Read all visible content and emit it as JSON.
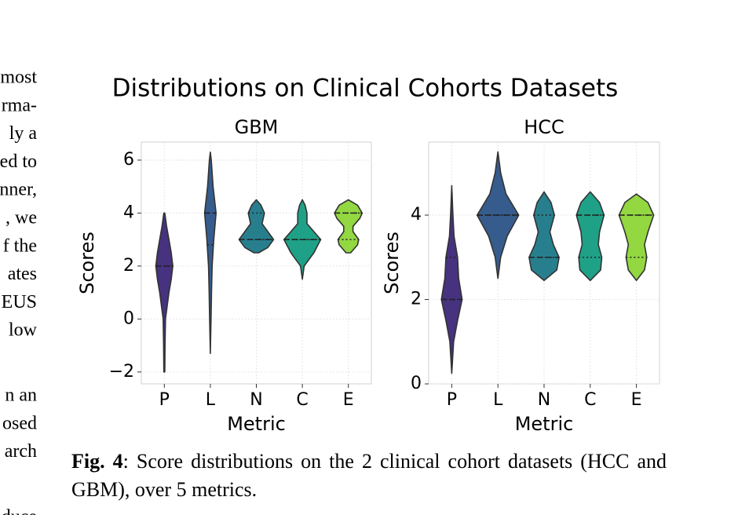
{
  "side_text": [
    [
      "most",
      "rma-",
      "ly a",
      "ed to",
      "nner,",
      ", we",
      "f the",
      "ates",
      "EUS",
      "low"
    ],
    [
      "n an",
      "osed",
      "arch"
    ],
    [
      "duce"
    ]
  ],
  "figure": {
    "title": "Distributions on Clinical Cohorts Datasets",
    "caption": {
      "label": "Fig. 4",
      "text": ": Score distributions on the 2 clinical cohort datasets (HCC and GBM), over 5 metrics."
    }
  },
  "chart_data": [
    {
      "type": "violin",
      "title": "GBM",
      "x_label": "Metric",
      "y_label": "Scores",
      "categories": [
        "P",
        "L",
        "N",
        "C",
        "E"
      ],
      "colors": [
        "#46327e",
        "#365c8d",
        "#277f8e",
        "#1fa187",
        "#93d741"
      ],
      "ylim": [
        -2.45,
        6.68
      ],
      "yticks": [
        {
          "value": -2,
          "label": "−2"
        },
        0,
        2,
        4,
        6
      ],
      "grid": true,
      "violins": [
        {
          "quartiles": [
            2,
            2,
            2
          ],
          "profile": {
            "y": [
              -2,
              -1,
              0,
              1,
              1.5,
              2,
              2.5,
              3,
              3.5,
              4
            ],
            "width": [
              0.02,
              0.03,
              0.05,
              0.2,
              0.3,
              0.37,
              0.3,
              0.2,
              0.1,
              0.02
            ]
          }
        },
        {
          "quartiles": [
            2.8,
            4,
            4
          ],
          "profile": {
            "y": [
              -1.3,
              0,
              1,
              2,
              3,
              4,
              5,
              6,
              6.3
            ],
            "width": [
              0,
              0.03,
              0.05,
              0.08,
              0.15,
              0.25,
              0.12,
              0.04,
              0
            ]
          }
        },
        {
          "quartiles": [
            3,
            3,
            4
          ],
          "profile": {
            "y": [
              2.5,
              2.7,
              3,
              3.3,
              3.6,
              4,
              4.3,
              4.5
            ],
            "width": [
              0.1,
              0.5,
              0.75,
              0.5,
              0.25,
              0.35,
              0.2,
              0
            ]
          }
        },
        {
          "quartiles": [
            3,
            3,
            3
          ],
          "profile": {
            "y": [
              1.5,
              2,
              2.5,
              3,
              3.3,
              3.6,
              4,
              4.3,
              4.5
            ],
            "width": [
              0,
              0.08,
              0.5,
              0.8,
              0.5,
              0.2,
              0.2,
              0.12,
              0
            ]
          }
        },
        {
          "quartiles": [
            3,
            4,
            4
          ],
          "profile": {
            "y": [
              2.5,
              2.8,
              3,
              3.3,
              3.5,
              3.8,
              4,
              4.3,
              4.5
            ],
            "width": [
              0.1,
              0.4,
              0.45,
              0.2,
              0.2,
              0.5,
              0.6,
              0.4,
              0
            ]
          }
        }
      ]
    },
    {
      "type": "violin",
      "title": "HCC",
      "x_label": "Metric",
      "y_label": "Scores",
      "categories": [
        "P",
        "L",
        "N",
        "C",
        "E"
      ],
      "colors": [
        "#46327e",
        "#365c8d",
        "#277f8e",
        "#1fa187",
        "#93d741"
      ],
      "ylim": [
        0,
        5.73
      ],
      "yticks": [
        0,
        2,
        4
      ],
      "grid": true,
      "violins": [
        {
          "quartiles": [
            2,
            2,
            3
          ],
          "profile": {
            "y": [
              0.25,
              1,
              1.5,
              2,
              2.5,
              3,
              3.5,
              4,
              4.7
            ],
            "width": [
              0,
              0.08,
              0.25,
              0.45,
              0.3,
              0.25,
              0.1,
              0.05,
              0
            ]
          }
        },
        {
          "quartiles": [
            4,
            4,
            4
          ],
          "profile": {
            "y": [
              2.5,
              3,
              3.5,
              4,
              4.5,
              5,
              5.5
            ],
            "width": [
              0,
              0.12,
              0.4,
              0.9,
              0.35,
              0.12,
              0
            ]
          }
        },
        {
          "quartiles": [
            3,
            3,
            4
          ],
          "profile": {
            "y": [
              2.45,
              2.7,
              3,
              3.3,
              3.6,
              4,
              4.3,
              4.55
            ],
            "width": [
              0,
              0.55,
              0.65,
              0.4,
              0.25,
              0.45,
              0.3,
              0
            ]
          }
        },
        {
          "quartiles": [
            3,
            4,
            4
          ],
          "profile": {
            "y": [
              2.45,
              2.7,
              3,
              3.3,
              3.6,
              4,
              4.3,
              4.55
            ],
            "width": [
              0,
              0.45,
              0.5,
              0.35,
              0.4,
              0.6,
              0.4,
              0
            ]
          }
        },
        {
          "quartiles": [
            3,
            4,
            4
          ],
          "profile": {
            "y": [
              2.45,
              2.7,
              3,
              3.3,
              3.6,
              4,
              4.3,
              4.5
            ],
            "width": [
              0,
              0.35,
              0.45,
              0.35,
              0.5,
              0.75,
              0.5,
              0
            ]
          }
        }
      ]
    }
  ]
}
